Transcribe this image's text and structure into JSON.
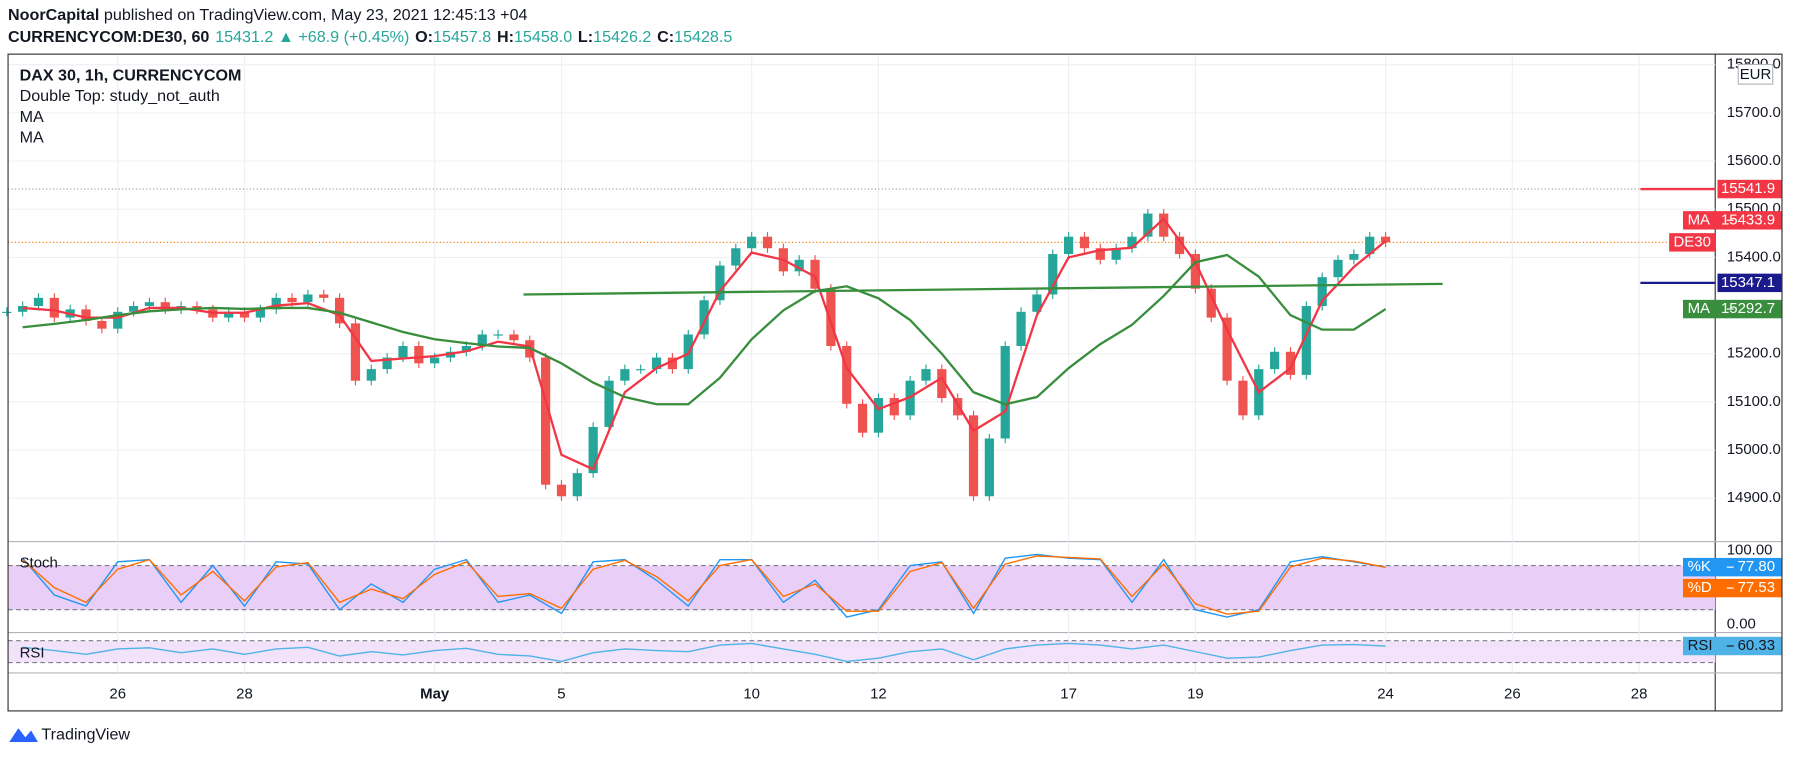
{
  "header": {
    "publisher": "NoorCapital",
    "published": "published on TradingView.com, May 23, 2021 12:45:13 +04",
    "symbol": "CURRENCYCOM:DE30, 60",
    "last": "15431.2",
    "change": "▲ +68.9 (+0.45%)",
    "ohlc": [
      {
        "label": "O:",
        "value": "15457.8"
      },
      {
        "label": "H:",
        "value": "15458.0"
      },
      {
        "label": "L:",
        "value": "15426.2"
      },
      {
        "label": "C:",
        "value": "15428.5"
      }
    ]
  },
  "footer": {
    "brand": "TradingView"
  },
  "chart_data": [
    {
      "type": "candlestick",
      "title": "DAX 30, 1h, CURRENCYCOM",
      "legend": [
        "Double Top: study_not_auth",
        "MA",
        "MA"
      ],
      "currency": "EUR",
      "up_color": "#26a69a",
      "down_color": "#ef5350",
      "grid": true,
      "xlim": [
        -1.73,
        25.2
      ],
      "xticks": [
        {
          "value": 0,
          "label": "26"
        },
        {
          "value": 2,
          "label": "28"
        },
        {
          "value": 5,
          "label": "May",
          "bold": true
        },
        {
          "value": 7,
          "label": "5"
        },
        {
          "value": 10,
          "label": "10"
        },
        {
          "value": 12,
          "label": "12"
        },
        {
          "value": 15,
          "label": "17"
        },
        {
          "value": 17,
          "label": "19"
        },
        {
          "value": 20,
          "label": "24"
        },
        {
          "value": 22,
          "label": "26"
        },
        {
          "value": 24,
          "label": "28"
        }
      ],
      "ylim": [
        14810,
        15822
      ],
      "yticks": [
        {
          "value": 14900,
          "label": "14900.0"
        },
        {
          "value": 15000,
          "label": "15000.0"
        },
        {
          "value": 15100,
          "label": "15100.0"
        },
        {
          "value": 15200,
          "label": "15200.0"
        },
        {
          "value": 15400,
          "label": "15400.0"
        },
        {
          "value": 15500,
          "label": "15500.0"
        },
        {
          "value": 15600,
          "label": "15600.0"
        },
        {
          "value": 15700,
          "label": "15700.0"
        },
        {
          "value": 15800,
          "label": "15800.0"
        }
      ],
      "x": [
        -1.75,
        -1.5,
        -1.25,
        -1,
        -0.75,
        -0.5,
        -0.25,
        0,
        0.25,
        0.5,
        0.75,
        1,
        1.25,
        1.5,
        1.75,
        2,
        2.25,
        2.5,
        2.75,
        3,
        3.25,
        3.5,
        3.75,
        4,
        4.25,
        4.5,
        4.75,
        5,
        5.25,
        5.5,
        5.75,
        6,
        6.25,
        6.5,
        6.75,
        7,
        7.25,
        7.5,
        7.75,
        8,
        8.25,
        8.5,
        8.75,
        9,
        9.25,
        9.5,
        9.75,
        10,
        10.25,
        10.5,
        10.75,
        11,
        11.25,
        11.5,
        11.75,
        12,
        12.25,
        12.5,
        12.75,
        13,
        13.25,
        13.5,
        13.75,
        14,
        14.25,
        14.5,
        14.75,
        15,
        15.25,
        15.5,
        15.75,
        16,
        16.25,
        16.5,
        16.75,
        17,
        17.25,
        17.5,
        17.75,
        18,
        18.25,
        18.5,
        18.75,
        19,
        19.25,
        19.5,
        19.75,
        20
      ],
      "values": [
        15287,
        15299,
        15316,
        15275,
        15292,
        15268,
        15252,
        15287,
        15299,
        15307,
        15292,
        15299,
        15292,
        15275,
        15287,
        15275,
        15292,
        15316,
        15307,
        15323,
        15316,
        15263,
        15144,
        15168,
        15192,
        15216,
        15180,
        15192,
        15204,
        15216,
        15240,
        15240,
        15228,
        15192,
        14928,
        14904,
        14952,
        15048,
        15144,
        15168,
        15168,
        15192,
        15168,
        15240,
        15311,
        15383,
        15419,
        15443,
        15419,
        15371,
        15395,
        15335,
        15216,
        15096,
        15036,
        15108,
        15072,
        15144,
        15168,
        15108,
        15072,
        14904,
        15024,
        15216,
        15287,
        15323,
        15407,
        15443,
        15419,
        15395,
        15419,
        15443,
        15491,
        15443,
        15407,
        15335,
        15275,
        15144,
        15072,
        15168,
        15204,
        15156,
        15299,
        15359,
        15395,
        15407,
        15443,
        15431.2
      ],
      "last_label": "DE30",
      "last_color": "#f57c00",
      "series": [
        {
          "name": "MA",
          "color": "#f23645",
          "x": [
            -1.5,
            -1,
            -0.5,
            0,
            0.5,
            1,
            1.5,
            2,
            2.5,
            3,
            3.5,
            4,
            4.5,
            5,
            5.5,
            6,
            6.5,
            7,
            7.5,
            8,
            8.5,
            9,
            9.5,
            10,
            10.5,
            11,
            11.5,
            12,
            12.5,
            13,
            13.5,
            14,
            14.5,
            15,
            15.5,
            16,
            16.5,
            17,
            17.5,
            18,
            18.5,
            19,
            19.5,
            20
          ],
          "values": [
            15295,
            15290,
            15275,
            15275,
            15295,
            15295,
            15285,
            15285,
            15300,
            15305,
            15280,
            15185,
            15190,
            15195,
            15205,
            15225,
            15215,
            14990,
            14960,
            15120,
            15170,
            15200,
            15330,
            15410,
            15395,
            15360,
            15170,
            15085,
            15110,
            15150,
            15040,
            15080,
            15280,
            15400,
            15415,
            15420,
            15480,
            15390,
            15250,
            15120,
            15170,
            15310,
            15380,
            15433.9
          ]
        },
        {
          "name": "MA",
          "color": "#388e3c",
          "x": [
            -1.5,
            -1,
            -0.5,
            0,
            0.5,
            1,
            1.5,
            2,
            2.5,
            3,
            3.5,
            4,
            4.5,
            5,
            5.5,
            6,
            6.5,
            7,
            7.5,
            8,
            8.5,
            9,
            9.5,
            10,
            10.5,
            11,
            11.5,
            12,
            12.5,
            13,
            13.5,
            14,
            14.5,
            15,
            15.5,
            16,
            16.5,
            17,
            17.5,
            18,
            18.5,
            19,
            19.5,
            20
          ],
          "values": [
            15255,
            15262,
            15270,
            15280,
            15288,
            15292,
            15295,
            15293,
            15295,
            15295,
            15285,
            15265,
            15245,
            15230,
            15222,
            15215,
            15212,
            15180,
            15140,
            15110,
            15095,
            15095,
            15150,
            15230,
            15290,
            15330,
            15340,
            15315,
            15270,
            15200,
            15120,
            15095,
            15110,
            15170,
            15220,
            15260,
            15320,
            15390,
            15405,
            15360,
            15280,
            15250,
            15250,
            15292.7
          ]
        }
      ],
      "lines": [
        {
          "value": 15541.9,
          "color": "#f23645"
        },
        {
          "value": 15347.1,
          "color": "#1a1a8c"
        }
      ],
      "trendline": {
        "x": [
          6.4,
          20.9
        ],
        "values": [
          15323,
          15345
        ],
        "color": "#388e3c"
      }
    },
    {
      "type": "line",
      "title": "Stoch",
      "ylim": [
        -11,
        111
      ],
      "yticks": [
        {
          "value": 100,
          "label": "100.00"
        },
        {
          "value": 0,
          "label": "0.00"
        }
      ],
      "bands": [
        20,
        80
      ],
      "band_color": "#e9cff8",
      "series": [
        {
          "name": "%K",
          "color": "#2196f3",
          "x": [
            -1.5,
            -1,
            -0.5,
            0,
            0.5,
            1,
            1.5,
            2,
            2.5,
            3,
            3.5,
            4,
            4.5,
            5,
            5.5,
            6,
            6.5,
            7,
            7.5,
            8,
            8.5,
            9,
            9.5,
            10,
            10.5,
            11,
            11.5,
            12,
            12.5,
            13,
            13.5,
            14,
            14.5,
            15,
            15.5,
            16,
            16.5,
            17,
            17.5,
            18,
            18.5,
            19,
            19.5,
            20
          ],
          "values": [
            90,
            40,
            25,
            85,
            88,
            30,
            80,
            25,
            85,
            82,
            20,
            55,
            30,
            75,
            88,
            30,
            40,
            15,
            85,
            88,
            60,
            25,
            88,
            88,
            30,
            60,
            10,
            20,
            80,
            85,
            15,
            90,
            95,
            90,
            88,
            30,
            88,
            20,
            10,
            20,
            85,
            92,
            85,
            77.8
          ],
          "value_labels": [
            null,
            null,
            null,
            null,
            null,
            null,
            null,
            null,
            null,
            null,
            null,
            null,
            null,
            null,
            null,
            null,
            null,
            null,
            null,
            null,
            null,
            null,
            null,
            null,
            null,
            null,
            null,
            null,
            null,
            null,
            null,
            null,
            null,
            null,
            null,
            null,
            null,
            null,
            null,
            null,
            null,
            null,
            null,
            "77.80"
          ]
        },
        {
          "name": "%D",
          "color": "#ff6d00",
          "x": [
            -1.5,
            -1,
            -0.5,
            0,
            0.5,
            1,
            1.5,
            2,
            2.5,
            3,
            3.5,
            4,
            4.5,
            5,
            5.5,
            6,
            6.5,
            7,
            7.5,
            8,
            8.5,
            9,
            9.5,
            10,
            10.5,
            11,
            11.5,
            12,
            12.5,
            13,
            13.5,
            14,
            14.5,
            15,
            15.5,
            16,
            16.5,
            17,
            17.5,
            18,
            18.5,
            19,
            19.5,
            20
          ],
          "values": [
            88,
            50,
            30,
            75,
            88,
            40,
            72,
            32,
            78,
            84,
            30,
            48,
            35,
            68,
            85,
            38,
            42,
            22,
            75,
            87,
            65,
            32,
            80,
            88,
            38,
            55,
            18,
            18,
            72,
            84,
            22,
            82,
            93,
            91,
            89,
            38,
            82,
            28,
            14,
            18,
            78,
            90,
            86,
            77.53
          ]
        }
      ]
    },
    {
      "type": "line",
      "title": "RSI",
      "ylim": [
        11,
        85
      ],
      "bands": [
        30,
        70
      ],
      "band_color": "#f3e3fa",
      "series": [
        {
          "name": "RSI",
          "color": "#4fb3e8",
          "x": [
            -1.5,
            -1,
            -0.5,
            0,
            0.5,
            1,
            1.5,
            2,
            2.5,
            3,
            3.5,
            4,
            4.5,
            5,
            5.5,
            6,
            6.5,
            7,
            7.5,
            8,
            8.5,
            9,
            9.5,
            10,
            10.5,
            11,
            11.5,
            12,
            12.5,
            13,
            13.5,
            14,
            14.5,
            15,
            15.5,
            16,
            16.5,
            17,
            17.5,
            18,
            18.5,
            19,
            19.5,
            20
          ],
          "values": [
            58,
            52,
            45,
            55,
            57,
            48,
            55,
            45,
            55,
            58,
            42,
            50,
            44,
            52,
            56,
            45,
            42,
            32,
            48,
            55,
            52,
            50,
            62,
            65,
            55,
            45,
            32,
            38,
            50,
            55,
            35,
            55,
            62,
            65,
            62,
            55,
            62,
            50,
            38,
            40,
            52,
            62,
            63,
            60.33
          ]
        }
      ]
    }
  ]
}
